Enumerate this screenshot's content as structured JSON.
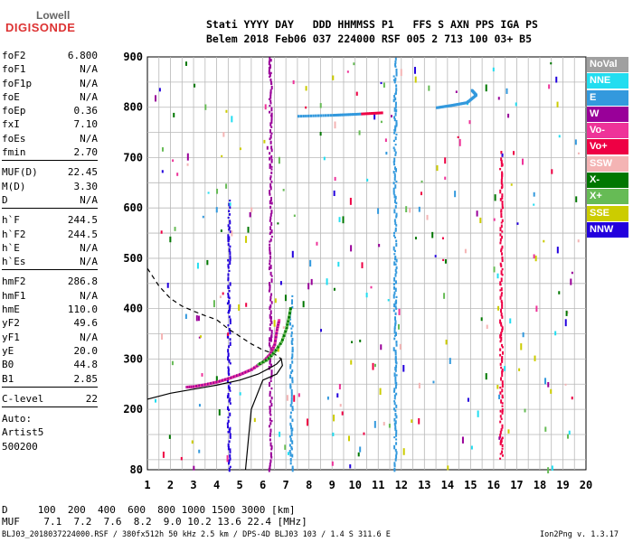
{
  "logo": {
    "line1": "Lowell",
    "line2": "DIGISONDE"
  },
  "header": {
    "line1": "Stati YYYY DAY   DDD HHMMSS P1   FFS S AXN PPS IGA PS",
    "line2": "Belem 2018 Feb06 037 224000 RSF 005 2 713 100 03+ B5"
  },
  "params": [
    {
      "label": "foF2",
      "value": "6.800"
    },
    {
      "label": "foF1",
      "value": "N/A"
    },
    {
      "label": "foF1p",
      "value": "N/A"
    },
    {
      "label": "foE",
      "value": "N/A"
    },
    {
      "label": "foEp",
      "value": "0.36"
    },
    {
      "label": "fxI",
      "value": "7.10"
    },
    {
      "label": "foEs",
      "value": "N/A"
    },
    {
      "label": "fmin",
      "value": "2.70"
    },
    {
      "sep": true
    },
    {
      "label": "MUF(D)",
      "value": "22.45"
    },
    {
      "label": "M(D)",
      "value": "3.30"
    },
    {
      "label": "D",
      "value": "N/A"
    },
    {
      "sep": true
    },
    {
      "label": "h`F",
      "value": "244.5"
    },
    {
      "label": "h`F2",
      "value": "244.5"
    },
    {
      "label": "h`E",
      "value": "N/A"
    },
    {
      "label": "h`Es",
      "value": "N/A"
    },
    {
      "sep": true
    },
    {
      "label": "hmF2",
      "value": "286.8"
    },
    {
      "label": "hmF1",
      "value": "N/A"
    },
    {
      "label": "hmE",
      "value": "110.0"
    },
    {
      "label": "yF2",
      "value": "49.6"
    },
    {
      "label": "yF1",
      "value": "N/A"
    },
    {
      "label": "yE",
      "value": "20.0"
    },
    {
      "label": "B0",
      "value": "44.8"
    },
    {
      "label": "B1",
      "value": "2.85"
    },
    {
      "sep": true
    },
    {
      "label": "C-level",
      "value": "22"
    },
    {
      "sep": true
    },
    {
      "text": "Auto:"
    },
    {
      "text": "Artist5"
    },
    {
      "text": "500200"
    }
  ],
  "legend": [
    {
      "label": "NoVal",
      "color": "#a0a0a0"
    },
    {
      "label": "NNE",
      "color": "#22ddf0"
    },
    {
      "label": "E",
      "color": "#3399dd"
    },
    {
      "label": "W",
      "color": "#990099"
    },
    {
      "label": "Vo-",
      "color": "#ee3399"
    },
    {
      "label": "Vo+",
      "color": "#ee0044"
    },
    {
      "label": "SSW",
      "color": "#f4b4b4"
    },
    {
      "label": "X-",
      "color": "#007700"
    },
    {
      "label": "X+",
      "color": "#66bb55"
    },
    {
      "label": "SSE",
      "color": "#cccc00"
    },
    {
      "label": "NNW",
      "color": "#2200dd"
    }
  ],
  "footer": {
    "line1": "D     100  200  400  600  800 1000 1500 3000 [km]",
    "line2": "MUF    7.1  7.2  7.6  8.2  9.0 10.2 13.6 22.4 [MHz]",
    "left": "BLJ03_2018037224000.RSF / 380fx512h 50 kHz 2.5 km / DPS-4D BLJ03 103 / 1.4 S 311.6 E",
    "right": "Ion2Png v. 1.3.17"
  },
  "chart_data": {
    "type": "scatter",
    "xlim": [
      1,
      20
    ],
    "ylim": [
      80,
      900
    ],
    "xticks": [
      1,
      2,
      3,
      4,
      5,
      6,
      7,
      8,
      9,
      10,
      11,
      12,
      13,
      14,
      15,
      16,
      17,
      18,
      19,
      20
    ],
    "yticks": [
      80,
      200,
      300,
      400,
      500,
      600,
      700,
      800,
      900
    ],
    "grid": true,
    "trace_o": [
      [
        2.7,
        245
      ],
      [
        3.0,
        246
      ],
      [
        3.5,
        250
      ],
      [
        4.0,
        255
      ],
      [
        4.5,
        262
      ],
      [
        5.0,
        270
      ],
      [
        5.5,
        280
      ],
      [
        6.0,
        295
      ],
      [
        6.3,
        310
      ],
      [
        6.5,
        330
      ],
      [
        6.6,
        360
      ],
      [
        6.7,
        380
      ]
    ],
    "trace_x": [
      [
        5.8,
        290
      ],
      [
        6.2,
        300
      ],
      [
        6.5,
        315
      ],
      [
        6.8,
        335
      ],
      [
        7.0,
        360
      ],
      [
        7.1,
        380
      ],
      [
        7.2,
        405
      ]
    ],
    "profile_solid": [
      [
        1.0,
        220
      ],
      [
        2.0,
        232
      ],
      [
        3.0,
        240
      ],
      [
        4.0,
        248
      ],
      [
        5.0,
        258
      ],
      [
        5.8,
        270
      ],
      [
        6.3,
        282
      ],
      [
        6.6,
        290
      ],
      [
        6.8,
        300
      ],
      [
        6.85,
        287
      ],
      [
        6.6,
        270
      ],
      [
        6.0,
        258
      ],
      [
        5.5,
        200
      ],
      [
        5.25,
        80
      ]
    ],
    "profile_dashed": [
      [
        1.0,
        480
      ],
      [
        1.5,
        445
      ],
      [
        2.0,
        420
      ],
      [
        2.5,
        405
      ],
      [
        3.0,
        395
      ],
      [
        3.5,
        386
      ],
      [
        4.0,
        378
      ],
      [
        4.5,
        360
      ],
      [
        5.0,
        345
      ],
      [
        5.5,
        330
      ],
      [
        6.0,
        318
      ],
      [
        6.5,
        310
      ],
      [
        6.8,
        300
      ]
    ],
    "oblique_trace": [
      [
        7.5,
        783
      ],
      [
        9,
        785
      ],
      [
        10,
        787
      ],
      [
        11.2,
        790
      ]
    ],
    "oblique_trace2": [
      [
        13.5,
        800
      ],
      [
        14.2,
        805
      ],
      [
        14.8,
        810
      ],
      [
        15.2,
        825
      ],
      [
        15.0,
        835
      ]
    ],
    "vertical_streaks": [
      {
        "x": 6.3,
        "y": [
          80,
          900
        ],
        "color": "#990099"
      },
      {
        "x": 11.7,
        "y": [
          80,
          900
        ],
        "color": "#3399dd"
      },
      {
        "x": 16.3,
        "y": [
          100,
          720
        ],
        "color": "#ee0044"
      },
      {
        "x": 4.5,
        "y": [
          80,
          620
        ],
        "color": "#2200dd"
      },
      {
        "x": 7.2,
        "y": [
          80,
          430
        ],
        "color": "#3399dd"
      }
    ]
  }
}
